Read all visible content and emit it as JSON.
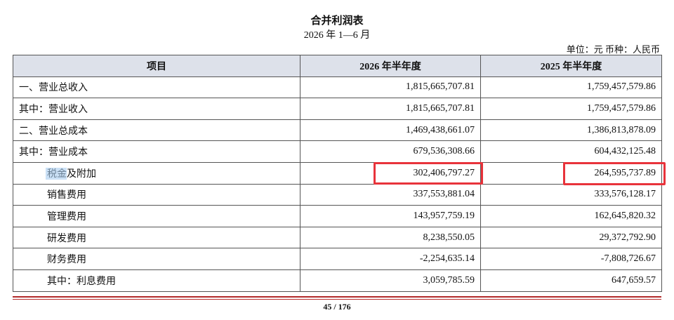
{
  "header": {
    "title": "合并利润表",
    "subtitle": "2026 年 1—6 月",
    "unit": "单位：元 币种：人民币"
  },
  "table": {
    "columns": [
      "项目",
      "2026 年半年度",
      "2025 年半年度"
    ],
    "rows": [
      [
        "一、营业总收入",
        "1,815,665,707.81",
        "1,759,457,579.86"
      ],
      [
        "其中：营业收入",
        "1,815,665,707.81",
        "1,759,457,579.86"
      ],
      [
        "二、营业总成本",
        "1,469,438,661.07",
        "1,386,813,878.09"
      ],
      [
        "其中：营业成本",
        "679,536,308.66",
        "604,432,125.48"
      ],
      [
        "税金及附加",
        "302,406,797.27",
        "264,595,737.89"
      ],
      [
        "销售费用",
        "337,553,881.04",
        "333,576,128.17"
      ],
      [
        "管理费用",
        "143,957,759.19",
        "162,645,820.32"
      ],
      [
        "研发费用",
        "8,238,550.05",
        "29,372,792.90"
      ],
      [
        "财务费用",
        "-2,254,635.14",
        "-7,808,726.67"
      ],
      [
        "其中：利息费用",
        "3,059,785.59",
        "647,659.57"
      ]
    ]
  },
  "footer": {
    "page": "45 / 176"
  }
}
